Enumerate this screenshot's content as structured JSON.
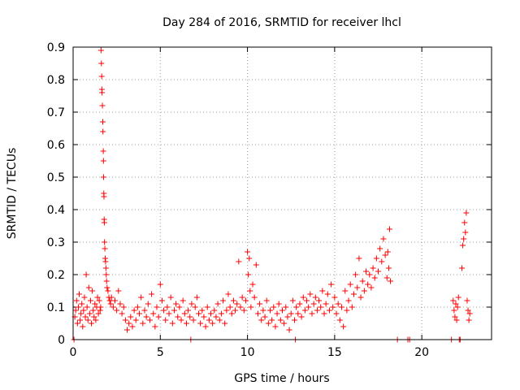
{
  "chart_data": {
    "type": "scatter",
    "title": "Day 284 of 2016, SRMTID for receiver lhcl",
    "xlabel": "GPS time / hours",
    "ylabel": "SRMTID / TECUs",
    "xlim": [
      0,
      24
    ],
    "ylim": [
      0,
      0.9
    ],
    "xticks": [
      0,
      5,
      10,
      15,
      20
    ],
    "yticks": [
      0,
      0.1,
      0.2,
      0.3,
      0.4,
      0.5,
      0.6,
      0.7,
      0.8,
      0.9
    ],
    "grid": true,
    "marker": "plus",
    "color": "#ff0000",
    "series": [
      {
        "points": [
          [
            0.05,
            0.0
          ],
          [
            0.1,
            0.07
          ],
          [
            0.15,
            0.09
          ],
          [
            0.2,
            0.12
          ],
          [
            0.25,
            0.05
          ],
          [
            0.3,
            0.1
          ],
          [
            0.35,
            0.14
          ],
          [
            0.4,
            0.06
          ],
          [
            0.45,
            0.08
          ],
          [
            0.5,
            0.11
          ],
          [
            0.55,
            0.04
          ],
          [
            0.6,
            0.09
          ],
          [
            0.65,
            0.13
          ],
          [
            0.7,
            0.07
          ],
          [
            0.75,
            0.2
          ],
          [
            0.8,
            0.1
          ],
          [
            0.85,
            0.06
          ],
          [
            0.9,
            0.16
          ],
          [
            0.95,
            0.08
          ],
          [
            1.0,
            0.12
          ],
          [
            1.05,
            0.05
          ],
          [
            1.1,
            0.15
          ],
          [
            1.15,
            0.09
          ],
          [
            1.2,
            0.07
          ],
          [
            1.25,
            0.11
          ],
          [
            1.3,
            0.06
          ],
          [
            1.35,
            0.1
          ],
          [
            1.4,
            0.13
          ],
          [
            1.45,
            0.08
          ],
          [
            1.5,
            0.12
          ],
          [
            1.55,
            0.09
          ],
          [
            1.58,
            0.1
          ],
          [
            1.6,
            0.89
          ],
          [
            1.62,
            0.85
          ],
          [
            1.64,
            0.81
          ],
          [
            1.65,
            0.77
          ],
          [
            1.66,
            0.76
          ],
          [
            1.68,
            0.72
          ],
          [
            1.7,
            0.67
          ],
          [
            1.71,
            0.64
          ],
          [
            1.73,
            0.58
          ],
          [
            1.74,
            0.55
          ],
          [
            1.75,
            0.5
          ],
          [
            1.76,
            0.45
          ],
          [
            1.77,
            0.44
          ],
          [
            1.78,
            0.37
          ],
          [
            1.79,
            0.36
          ],
          [
            1.8,
            0.3
          ],
          [
            1.82,
            0.28
          ],
          [
            1.84,
            0.25
          ],
          [
            1.86,
            0.24
          ],
          [
            1.88,
            0.22
          ],
          [
            1.9,
            0.2
          ],
          [
            1.92,
            0.18
          ],
          [
            1.95,
            0.16
          ],
          [
            2.0,
            0.15
          ],
          [
            2.05,
            0.13
          ],
          [
            2.1,
            0.12
          ],
          [
            2.15,
            0.11
          ],
          [
            2.2,
            0.13
          ],
          [
            2.3,
            0.1
          ],
          [
            2.4,
            0.12
          ],
          [
            2.5,
            0.09
          ],
          [
            2.6,
            0.15
          ],
          [
            2.7,
            0.11
          ],
          [
            2.8,
            0.08
          ],
          [
            2.9,
            0.1
          ],
          [
            3.0,
            0.06
          ],
          [
            3.1,
            0.03
          ],
          [
            3.2,
            0.05
          ],
          [
            3.3,
            0.07
          ],
          [
            3.4,
            0.04
          ],
          [
            3.5,
            0.09
          ],
          [
            3.6,
            0.06
          ],
          [
            3.7,
            0.1
          ],
          [
            3.8,
            0.08
          ],
          [
            3.9,
            0.13
          ],
          [
            4.0,
            0.05
          ],
          [
            4.1,
            0.09
          ],
          [
            4.2,
            0.07
          ],
          [
            4.3,
            0.11
          ],
          [
            4.4,
            0.06
          ],
          [
            4.5,
            0.14
          ],
          [
            4.6,
            0.08
          ],
          [
            4.7,
            0.04
          ],
          [
            4.8,
            0.1
          ],
          [
            4.9,
            0.07
          ],
          [
            5.0,
            0.17
          ],
          [
            5.1,
            0.12
          ],
          [
            5.2,
            0.09
          ],
          [
            5.3,
            0.06
          ],
          [
            5.4,
            0.1
          ],
          [
            5.5,
            0.08
          ],
          [
            5.6,
            0.13
          ],
          [
            5.7,
            0.05
          ],
          [
            5.8,
            0.09
          ],
          [
            5.9,
            0.11
          ],
          [
            6.0,
            0.07
          ],
          [
            6.1,
            0.1
          ],
          [
            6.2,
            0.06
          ],
          [
            6.3,
            0.12
          ],
          [
            6.4,
            0.08
          ],
          [
            6.5,
            0.05
          ],
          [
            6.6,
            0.09
          ],
          [
            6.7,
            0.07
          ],
          [
            6.75,
            0.0
          ],
          [
            6.8,
            0.11
          ],
          [
            6.9,
            0.06
          ],
          [
            7.0,
            0.1
          ],
          [
            7.1,
            0.13
          ],
          [
            7.2,
            0.08
          ],
          [
            7.3,
            0.05
          ],
          [
            7.4,
            0.09
          ],
          [
            7.5,
            0.07
          ],
          [
            7.6,
            0.04
          ],
          [
            7.7,
            0.1
          ],
          [
            7.8,
            0.06
          ],
          [
            7.9,
            0.08
          ],
          [
            8.0,
            0.05
          ],
          [
            8.1,
            0.09
          ],
          [
            8.2,
            0.07
          ],
          [
            8.3,
            0.11
          ],
          [
            8.4,
            0.06
          ],
          [
            8.5,
            0.08
          ],
          [
            8.6,
            0.12
          ],
          [
            8.7,
            0.05
          ],
          [
            8.8,
            0.09
          ],
          [
            8.9,
            0.14
          ],
          [
            9.0,
            0.1
          ],
          [
            9.1,
            0.08
          ],
          [
            9.2,
            0.12
          ],
          [
            9.3,
            0.09
          ],
          [
            9.4,
            0.11
          ],
          [
            9.5,
            0.24
          ],
          [
            9.6,
            0.1
          ],
          [
            9.7,
            0.13
          ],
          [
            9.8,
            0.09
          ],
          [
            9.9,
            0.12
          ],
          [
            10.0,
            0.27
          ],
          [
            10.05,
            0.2
          ],
          [
            10.1,
            0.25
          ],
          [
            10.15,
            0.15
          ],
          [
            10.2,
            0.1
          ],
          [
            10.3,
            0.17
          ],
          [
            10.4,
            0.13
          ],
          [
            10.5,
            0.23
          ],
          [
            10.6,
            0.08
          ],
          [
            10.7,
            0.11
          ],
          [
            10.8,
            0.06
          ],
          [
            10.9,
            0.09
          ],
          [
            11.0,
            0.07
          ],
          [
            11.1,
            0.12
          ],
          [
            11.2,
            0.05
          ],
          [
            11.3,
            0.09
          ],
          [
            11.4,
            0.06
          ],
          [
            11.5,
            0.1
          ],
          [
            11.6,
            0.04
          ],
          [
            11.7,
            0.08
          ],
          [
            11.8,
            0.11
          ],
          [
            11.9,
            0.06
          ],
          [
            12.0,
            0.09
          ],
          [
            12.1,
            0.05
          ],
          [
            12.2,
            0.1
          ],
          [
            12.3,
            0.07
          ],
          [
            12.4,
            0.03
          ],
          [
            12.5,
            0.08
          ],
          [
            12.6,
            0.12
          ],
          [
            12.7,
            0.06
          ],
          [
            12.75,
            0.0
          ],
          [
            12.8,
            0.1
          ],
          [
            12.9,
            0.08
          ],
          [
            13.0,
            0.11
          ],
          [
            13.1,
            0.07
          ],
          [
            13.2,
            0.13
          ],
          [
            13.3,
            0.09
          ],
          [
            13.4,
            0.12
          ],
          [
            13.5,
            0.1
          ],
          [
            13.6,
            0.14
          ],
          [
            13.7,
            0.08
          ],
          [
            13.8,
            0.11
          ],
          [
            13.9,
            0.13
          ],
          [
            14.0,
            0.09
          ],
          [
            14.1,
            0.12
          ],
          [
            14.2,
            0.1
          ],
          [
            14.3,
            0.15
          ],
          [
            14.4,
            0.08
          ],
          [
            14.5,
            0.11
          ],
          [
            14.6,
            0.14
          ],
          [
            14.7,
            0.09
          ],
          [
            14.8,
            0.17
          ],
          [
            14.9,
            0.1
          ],
          [
            15.0,
            0.13
          ],
          [
            15.1,
            0.08
          ],
          [
            15.2,
            0.11
          ],
          [
            15.3,
            0.06
          ],
          [
            15.4,
            0.1
          ],
          [
            15.5,
            0.04
          ],
          [
            15.6,
            0.15
          ],
          [
            15.7,
            0.09
          ],
          [
            15.8,
            0.12
          ],
          [
            15.9,
            0.17
          ],
          [
            16.0,
            0.1
          ],
          [
            16.1,
            0.14
          ],
          [
            16.2,
            0.2
          ],
          [
            16.3,
            0.16
          ],
          [
            16.4,
            0.25
          ],
          [
            16.5,
            0.13
          ],
          [
            16.6,
            0.18
          ],
          [
            16.7,
            0.15
          ],
          [
            16.8,
            0.21
          ],
          [
            16.9,
            0.17
          ],
          [
            17.0,
            0.2
          ],
          [
            17.1,
            0.16
          ],
          [
            17.2,
            0.22
          ],
          [
            17.3,
            0.19
          ],
          [
            17.4,
            0.25
          ],
          [
            17.5,
            0.21
          ],
          [
            17.6,
            0.28
          ],
          [
            17.7,
            0.24
          ],
          [
            17.8,
            0.31
          ],
          [
            17.9,
            0.26
          ],
          [
            18.0,
            0.19
          ],
          [
            18.05,
            0.27
          ],
          [
            18.1,
            0.22
          ],
          [
            18.15,
            0.34
          ],
          [
            18.2,
            0.18
          ],
          [
            18.6,
            0.0
          ],
          [
            19.2,
            0.0
          ],
          [
            19.3,
            0.0
          ],
          [
            21.7,
            0.0
          ],
          [
            21.8,
            0.12
          ],
          [
            21.85,
            0.09
          ],
          [
            21.9,
            0.07
          ],
          [
            21.95,
            0.11
          ],
          [
            22.0,
            0.06
          ],
          [
            22.05,
            0.1
          ],
          [
            22.1,
            0.13
          ],
          [
            22.15,
            0.0
          ],
          [
            22.2,
            0.0
          ],
          [
            22.3,
            0.22
          ],
          [
            22.35,
            0.29
          ],
          [
            22.4,
            0.31
          ],
          [
            22.45,
            0.36
          ],
          [
            22.5,
            0.33
          ],
          [
            22.55,
            0.39
          ],
          [
            22.6,
            0.12
          ],
          [
            22.65,
            0.09
          ],
          [
            22.7,
            0.06
          ],
          [
            22.75,
            0.08
          ]
        ]
      }
    ]
  }
}
